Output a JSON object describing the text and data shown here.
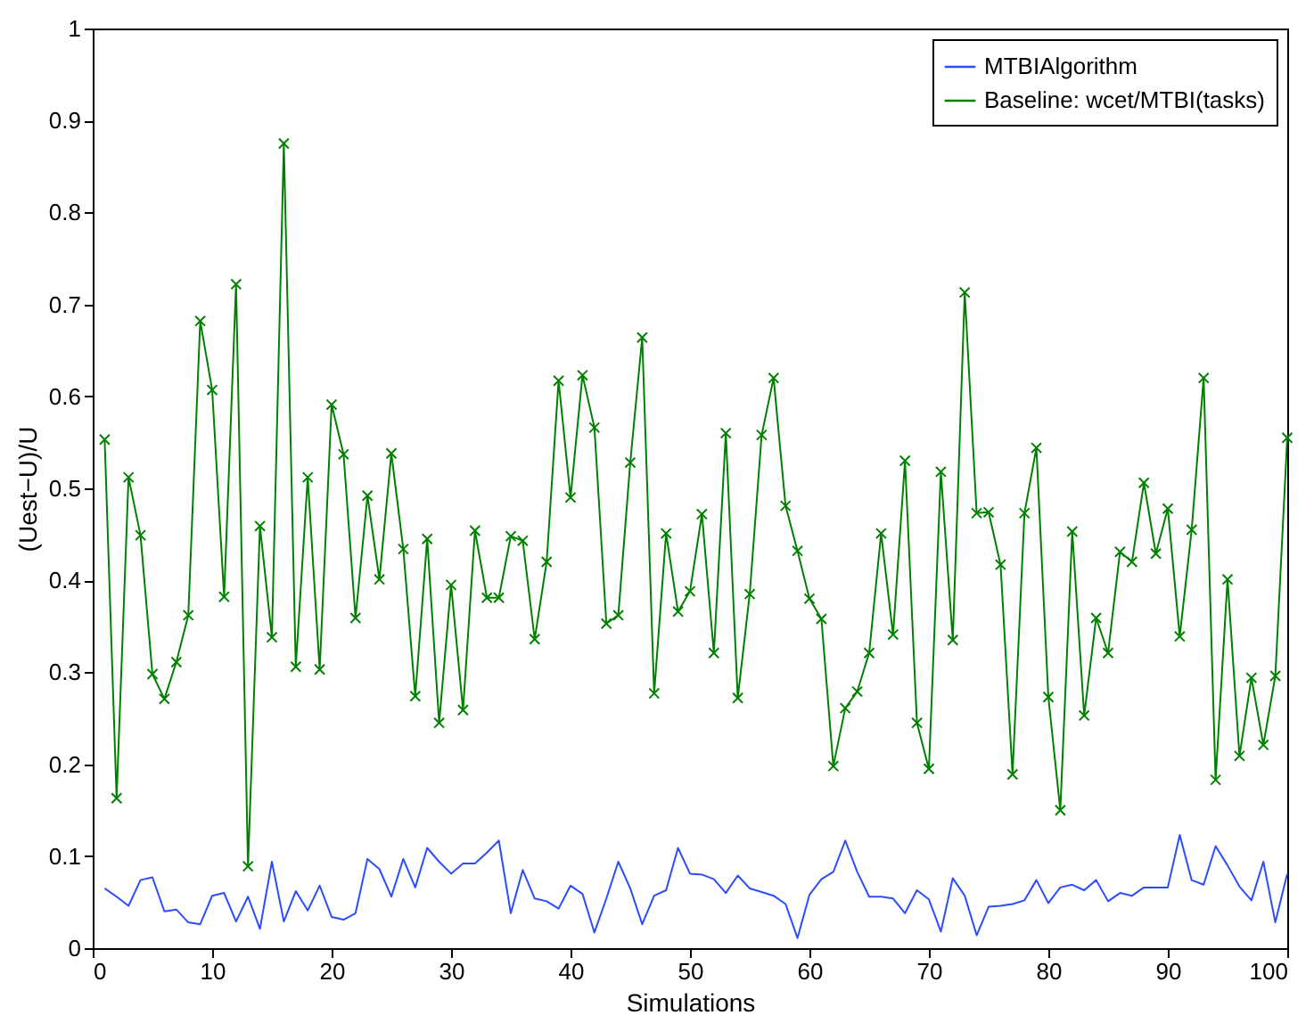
{
  "chart_data": {
    "type": "line",
    "xlabel": "Simulations",
    "ylabel": "(Uest−U)/U",
    "xlim": [
      0,
      100
    ],
    "ylim": [
      0,
      1
    ],
    "xticks": [
      0,
      10,
      20,
      30,
      40,
      50,
      60,
      70,
      80,
      90,
      100
    ],
    "yticks": [
      0,
      0.1,
      0.2,
      0.3,
      0.4,
      0.5,
      0.6,
      0.7,
      0.8,
      0.9,
      1
    ],
    "grid": false,
    "legend": "top right",
    "line_style": "solid",
    "x": [
      1,
      2,
      3,
      4,
      5,
      6,
      7,
      8,
      9,
      10,
      11,
      12,
      13,
      14,
      15,
      16,
      17,
      18,
      19,
      20,
      21,
      22,
      23,
      24,
      25,
      26,
      27,
      28,
      29,
      30,
      31,
      32,
      33,
      34,
      35,
      36,
      37,
      38,
      39,
      40,
      41,
      42,
      43,
      44,
      45,
      46,
      47,
      48,
      49,
      50,
      51,
      52,
      53,
      54,
      55,
      56,
      57,
      58,
      59,
      60,
      61,
      62,
      63,
      64,
      65,
      66,
      67,
      68,
      69,
      70,
      71,
      72,
      73,
      74,
      75,
      76,
      77,
      78,
      79,
      80,
      81,
      82,
      83,
      84,
      85,
      86,
      87,
      88,
      89,
      90,
      91,
      92,
      93,
      94,
      95,
      96,
      97,
      98,
      99,
      100
    ],
    "series": [
      {
        "name": "MTBIAlgorithm",
        "color": "#2b4cff",
        "marker": "none",
        "values": [
          0.065,
          0.056,
          0.046,
          0.074,
          0.077,
          0.04,
          0.042,
          0.028,
          0.026,
          0.057,
          0.06,
          0.029,
          0.056,
          0.021,
          0.094,
          0.029,
          0.062,
          0.041,
          0.068,
          0.034,
          0.031,
          0.038,
          0.097,
          0.086,
          0.056,
          0.097,
          0.066,
          0.109,
          0.094,
          0.081,
          0.092,
          0.092,
          0.104,
          0.117,
          0.038,
          0.085,
          0.054,
          0.051,
          0.043,
          0.068,
          0.059,
          0.017,
          0.054,
          0.094,
          0.065,
          0.026,
          0.057,
          0.063,
          0.109,
          0.081,
          0.08,
          0.075,
          0.06,
          0.079,
          0.065,
          0.061,
          0.057,
          0.048,
          0.011,
          0.058,
          0.075,
          0.083,
          0.117,
          0.083,
          0.056,
          0.056,
          0.054,
          0.038,
          0.063,
          0.053,
          0.018,
          0.076,
          0.057,
          0.014,
          0.045,
          0.046,
          0.048,
          0.052,
          0.074,
          0.049,
          0.066,
          0.069,
          0.063,
          0.074,
          0.051,
          0.06,
          0.057,
          0.066,
          0.066,
          0.066,
          0.123,
          0.074,
          0.069,
          0.111,
          0.09,
          0.067,
          0.052,
          0.094,
          0.028,
          0.081
        ]
      },
      {
        "name": "Baseline: wcet/MTBI(tasks)",
        "color": "#008000",
        "marker": "cross",
        "values": [
          0.553,
          0.163,
          0.512,
          0.449,
          0.298,
          0.271,
          0.311,
          0.362,
          0.682,
          0.607,
          0.382,
          0.722,
          0.089,
          0.459,
          0.338,
          0.875,
          0.306,
          0.512,
          0.303,
          0.591,
          0.537,
          0.359,
          0.492,
          0.401,
          0.538,
          0.434,
          0.274,
          0.445,
          0.245,
          0.395,
          0.259,
          0.454,
          0.381,
          0.381,
          0.448,
          0.443,
          0.336,
          0.42,
          0.617,
          0.49,
          0.623,
          0.566,
          0.353,
          0.362,
          0.528,
          0.664,
          0.277,
          0.451,
          0.366,
          0.388,
          0.472,
          0.321,
          0.56,
          0.272,
          0.385,
          0.558,
          0.62,
          0.481,
          0.432,
          0.38,
          0.358,
          0.198,
          0.261,
          0.279,
          0.321,
          0.451,
          0.341,
          0.53,
          0.245,
          0.195,
          0.518,
          0.335,
          0.713,
          0.473,
          0.474,
          0.417,
          0.189,
          0.473,
          0.544,
          0.273,
          0.15,
          0.453,
          0.253,
          0.359,
          0.321,
          0.431,
          0.42,
          0.506,
          0.429,
          0.478,
          0.339,
          0.455,
          0.62,
          0.183,
          0.401,
          0.209,
          0.294,
          0.221,
          0.296,
          0.555
        ]
      }
    ]
  }
}
